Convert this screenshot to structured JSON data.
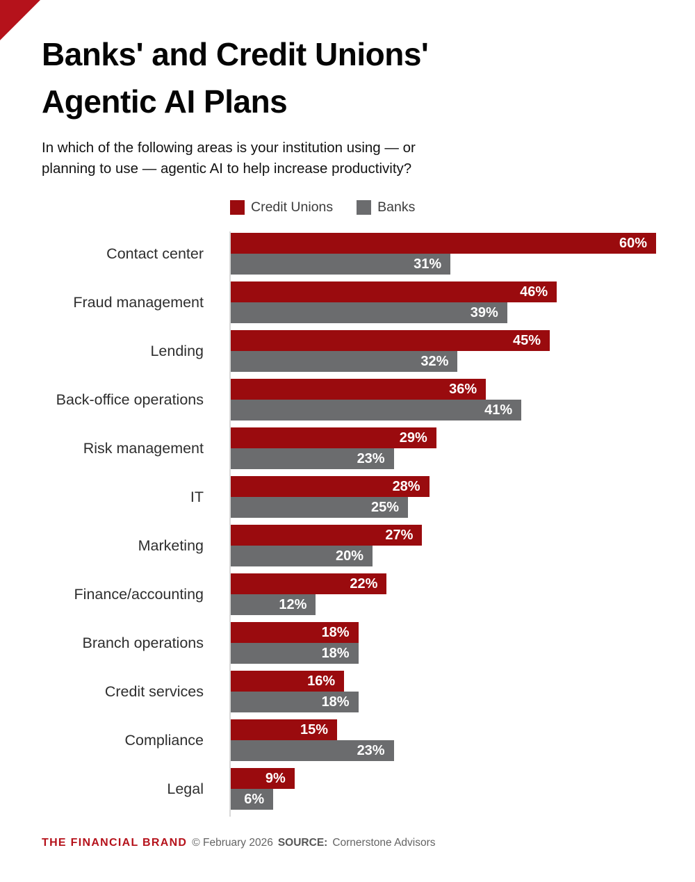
{
  "page": {
    "title_line1": "Banks' and Credit Unions'",
    "title_line2": "Agentic AI Plans",
    "subtitle_line1": "In which of the following areas is your institution using — or",
    "subtitle_line2": "planning to use — agentic AI to help increase productivity?",
    "accent_color": "#b5121b"
  },
  "chart_data": {
    "type": "bar",
    "orientation": "horizontal",
    "title": "Banks' and Credit Unions' Agentic AI Plans",
    "categories": [
      "Contact center",
      "Fraud management",
      "Lending",
      "Back-office operations",
      "Risk management",
      "IT",
      "Marketing",
      "Finance/accounting",
      "Branch operations",
      "Credit services",
      "Compliance",
      "Legal"
    ],
    "series": [
      {
        "name": "Credit Unions",
        "color": "#9a0b0e",
        "values": [
          60,
          46,
          45,
          36,
          29,
          28,
          27,
          22,
          18,
          16,
          15,
          9
        ]
      },
      {
        "name": "Banks",
        "color": "#6b6c6e",
        "values": [
          31,
          39,
          32,
          41,
          23,
          25,
          20,
          12,
          18,
          18,
          23,
          6
        ]
      }
    ],
    "value_suffix": "%",
    "value_labels": "inside-end",
    "xlim": [
      0,
      62
    ],
    "grid": false,
    "legend_position": "top",
    "axis_line_color": "#d9d9d9"
  },
  "footer": {
    "brand": "THE FINANCIAL BRAND",
    "copyright": "© February 2026",
    "source_label": "SOURCE:",
    "source": "Cornerstone Advisors"
  }
}
